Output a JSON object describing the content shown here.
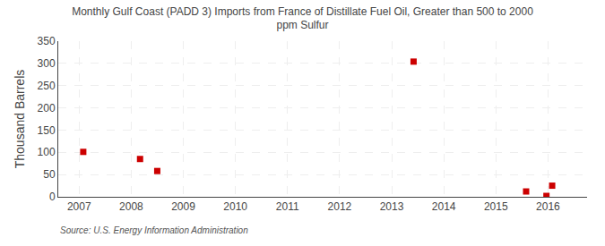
{
  "chart_data": {
    "type": "scatter",
    "title": "Monthly Gulf Coast (PADD 3) Imports from France of Distillate Fuel Oil, Greater than 500 to 2000\nppm Sulfur",
    "y_label": "Thousand Barrels",
    "annotations": [
      "Source: U.S. Energy Information Administration"
    ],
    "x": [
      2007.08,
      2008.17,
      2008.5,
      2013.42,
      2015.58,
      2015.97,
      2016.08
    ],
    "values": [
      101,
      85,
      58,
      304,
      12,
      2,
      25
    ],
    "color": "#cc0000",
    "marker": "square",
    "xlim": [
      2006.6,
      2016.75
    ],
    "xticks": [
      2007,
      2008,
      2009,
      2010,
      2011,
      2012,
      2013,
      2014,
      2015,
      2016
    ],
    "ylim": [
      0,
      350
    ],
    "yticks": [
      0,
      50,
      100,
      150,
      200,
      250,
      300,
      350
    ],
    "grid": true
  }
}
